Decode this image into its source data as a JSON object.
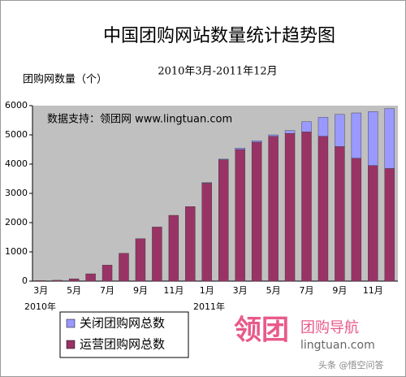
{
  "chart_data": {
    "type": "stacked_bar",
    "title": "中国团购网站数量统计趋势图",
    "subtitle": "2010年3月-2011年12月",
    "y_label": "团购网数量（个）",
    "annotations": [
      "数据支持：领团网 www.lingtuan.com",
      "2010年",
      "2011年"
    ],
    "categories": [
      "3月",
      null,
      "5月",
      null,
      "7月",
      null,
      "9月",
      null,
      "11月",
      null,
      "1月",
      null,
      "3月",
      null,
      "5月",
      null,
      "7月",
      null,
      "9月",
      null,
      "11月",
      null
    ],
    "series": [
      {
        "name": "运营团购网总数",
        "color": "#993366",
        "values": [
          20,
          30,
          80,
          250,
          550,
          950,
          1450,
          1850,
          2250,
          2550,
          3350,
          4150,
          4500,
          4750,
          4950,
          5050,
          5100,
          4950,
          4600,
          4200,
          3950,
          3850
        ]
      },
      {
        "name": "关闭团购网总数",
        "color": "#9999ff",
        "values": [
          0,
          0,
          0,
          0,
          0,
          0,
          0,
          0,
          0,
          0,
          20,
          20,
          50,
          50,
          50,
          100,
          350,
          650,
          1100,
          1550,
          1850,
          2050
        ]
      }
    ],
    "ylim": [
      0,
      6000
    ],
    "yticks": [
      0,
      1000,
      2000,
      3000,
      4000,
      5000,
      6000
    ],
    "grid": false,
    "legend": "bottom-left",
    "logo": {
      "mark": "领团",
      "name": "团购导航",
      "url": "lingtuan.com"
    },
    "watermark": "头条 @悟空问答"
  }
}
